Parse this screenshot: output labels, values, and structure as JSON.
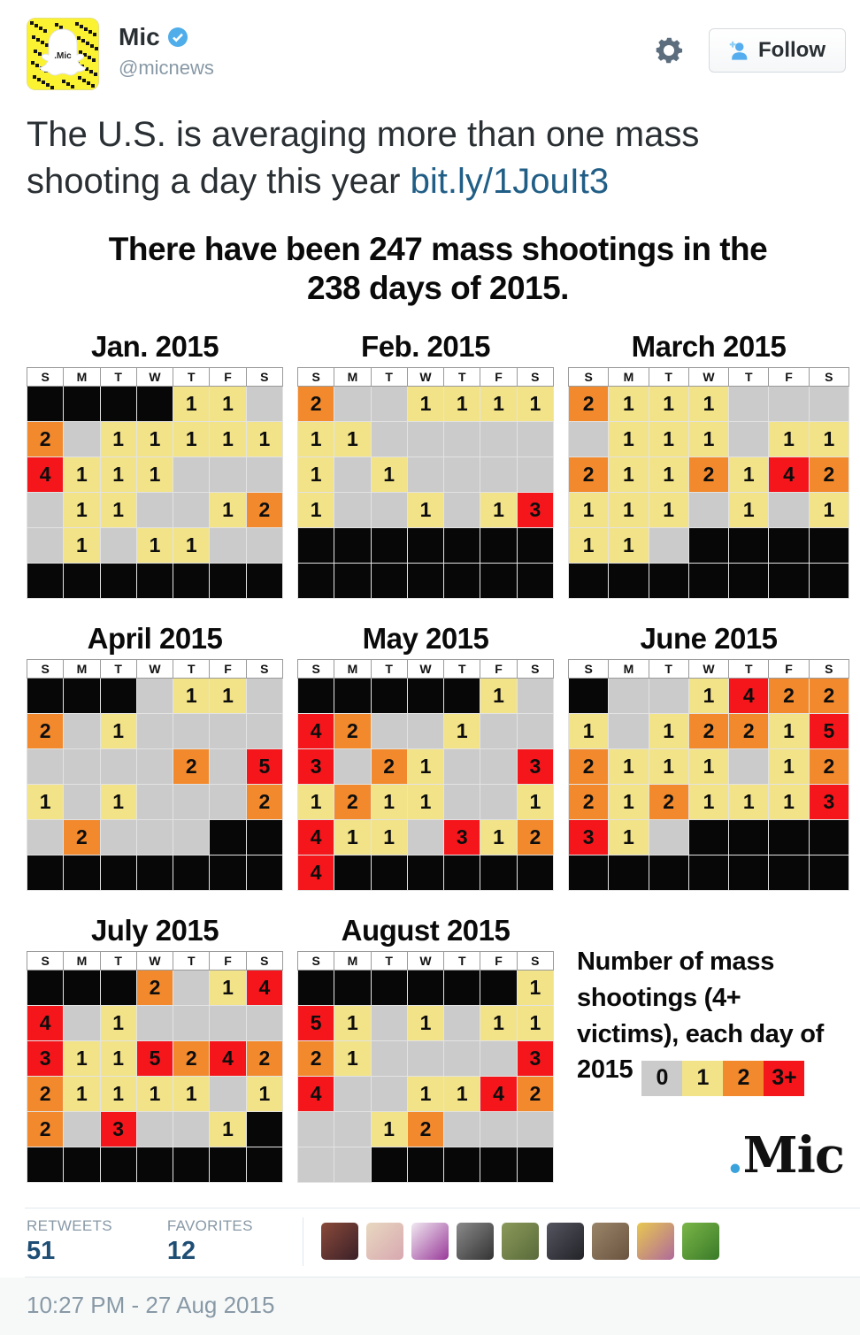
{
  "header": {
    "name": "Mic",
    "handle": "@micnews",
    "follow_label": "Follow"
  },
  "tweet": {
    "text": "The U.S. is averaging more than one mass shooting a day this year ",
    "link_text": "bit.ly/1JouIt3"
  },
  "infographic": {
    "title": "There have been 247 mass shootings in the 238 days of 2015.",
    "day_headers": [
      "S",
      "M",
      "T",
      "W",
      "T",
      "F",
      "S"
    ],
    "months": [
      {
        "name": "Jan. 2015",
        "rows": [
          [
            "k",
            "k",
            "k",
            "k",
            "y1",
            "y1",
            "g"
          ],
          [
            "o2",
            "g",
            "y1",
            "y1",
            "y1",
            "y1",
            "y1"
          ],
          [
            "r4",
            "y1",
            "y1",
            "y1",
            "g",
            "g",
            "g"
          ],
          [
            "g",
            "y1",
            "y1",
            "g",
            "g",
            "y1",
            "o2"
          ],
          [
            "g",
            "y1",
            "g",
            "y1",
            "y1",
            "g",
            "g"
          ],
          [
            "k",
            "k",
            "k",
            "k",
            "k",
            "k",
            "k"
          ]
        ]
      },
      {
        "name": "Feb. 2015",
        "rows": [
          [
            "o2",
            "g",
            "g",
            "y1",
            "y1",
            "y1",
            "y1"
          ],
          [
            "y1",
            "y1",
            "g",
            "g",
            "g",
            "g",
            "g"
          ],
          [
            "y1",
            "g",
            "y1",
            "g",
            "g",
            "g",
            "g"
          ],
          [
            "y1",
            "g",
            "g",
            "y1",
            "g",
            "y1",
            "r3"
          ],
          [
            "k",
            "k",
            "k",
            "k",
            "k",
            "k",
            "k"
          ],
          [
            "k",
            "k",
            "k",
            "k",
            "k",
            "k",
            "k"
          ]
        ]
      },
      {
        "name": "March 2015",
        "rows": [
          [
            "o2",
            "y1",
            "y1",
            "y1",
            "g",
            "g",
            "g"
          ],
          [
            "g",
            "y1",
            "y1",
            "y1",
            "g",
            "y1",
            "y1"
          ],
          [
            "o2",
            "y1",
            "y1",
            "o2",
            "y1",
            "r4",
            "o2"
          ],
          [
            "y1",
            "y1",
            "y1",
            "g",
            "y1",
            "g",
            "y1"
          ],
          [
            "y1",
            "y1",
            "g",
            "k",
            "k",
            "k",
            "k"
          ],
          [
            "k",
            "k",
            "k",
            "k",
            "k",
            "k",
            "k"
          ]
        ]
      },
      {
        "name": "April 2015",
        "rows": [
          [
            "k",
            "k",
            "k",
            "g",
            "y1",
            "y1",
            "g"
          ],
          [
            "o2",
            "g",
            "y1",
            "g",
            "g",
            "g",
            "g"
          ],
          [
            "g",
            "g",
            "g",
            "g",
            "o2",
            "g",
            "r5"
          ],
          [
            "y1",
            "g",
            "y1",
            "g",
            "g",
            "g",
            "o2"
          ],
          [
            "g",
            "o2",
            "g",
            "g",
            "g",
            "k",
            "k"
          ],
          [
            "k",
            "k",
            "k",
            "k",
            "k",
            "k",
            "k"
          ]
        ]
      },
      {
        "name": "May 2015",
        "rows": [
          [
            "k",
            "k",
            "k",
            "k",
            "k",
            "y1",
            "g"
          ],
          [
            "r4",
            "o2",
            "g",
            "g",
            "y1",
            "g",
            "g"
          ],
          [
            "r3",
            "g",
            "o2",
            "y1",
            "g",
            "g",
            "r3"
          ],
          [
            "y1",
            "o2",
            "y1",
            "y1",
            "g",
            "g",
            "y1"
          ],
          [
            "r4",
            "y1",
            "y1",
            "g",
            "r3",
            "y1",
            "o2"
          ],
          [
            "r4",
            "k",
            "k",
            "k",
            "k",
            "k",
            "k"
          ]
        ]
      },
      {
        "name": "June 2015",
        "rows": [
          [
            "k",
            "g",
            "g",
            "y1",
            "r4",
            "o2",
            "o2"
          ],
          [
            "y1",
            "g",
            "y1",
            "o2",
            "o2",
            "y1",
            "r5"
          ],
          [
            "o2",
            "y1",
            "y1",
            "y1",
            "g",
            "y1",
            "o2"
          ],
          [
            "o2",
            "y1",
            "o2",
            "y1",
            "y1",
            "y1",
            "r3"
          ],
          [
            "r3",
            "y1",
            "g",
            "k",
            "k",
            "k",
            "k"
          ],
          [
            "k",
            "k",
            "k",
            "k",
            "k",
            "k",
            "k"
          ]
        ]
      },
      {
        "name": "July 2015",
        "rows": [
          [
            "k",
            "k",
            "k",
            "o2",
            "g",
            "y1",
            "r4"
          ],
          [
            "r4",
            "g",
            "y1",
            "g",
            "g",
            "g",
            "g"
          ],
          [
            "r3",
            "y1",
            "y1",
            "r5",
            "o2",
            "r4",
            "o2"
          ],
          [
            "o2",
            "y1",
            "y1",
            "y1",
            "y1",
            "g",
            "y1"
          ],
          [
            "o2",
            "g",
            "r3",
            "g",
            "g",
            "y1",
            "k"
          ],
          [
            "k",
            "k",
            "k",
            "k",
            "k",
            "k",
            "k"
          ]
        ]
      },
      {
        "name": "August 2015",
        "rows": [
          [
            "k",
            "k",
            "k",
            "k",
            "k",
            "k",
            "y1"
          ],
          [
            "r5",
            "y1",
            "g",
            "y1",
            "g",
            "y1",
            "y1"
          ],
          [
            "o2",
            "y1",
            "g",
            "g",
            "g",
            "g",
            "r3"
          ],
          [
            "r4",
            "g",
            "g",
            "y1",
            "y1",
            "r4",
            "o2"
          ],
          [
            "g",
            "g",
            "y1",
            "o2",
            "g",
            "g",
            "g"
          ],
          [
            "g",
            "g",
            "k",
            "k",
            "k",
            "k",
            "k"
          ]
        ]
      }
    ],
    "legend": {
      "text": "Number of mass shootings (4+ victims), each day of 2015",
      "items": [
        {
          "label": "0",
          "color": "#cbcbcb"
        },
        {
          "label": "1",
          "color": "#f2e388"
        },
        {
          "label": "2",
          "color": "#f28a2d"
        },
        {
          "label": "3+",
          "color": "#f5161c"
        }
      ]
    },
    "brand": {
      "dot": ".",
      "name": "Mic"
    }
  },
  "stats": {
    "retweets_label": "RETWEETS",
    "retweets_value": "51",
    "favorites_label": "FAVORITES",
    "favorites_value": "12"
  },
  "avatars": [
    {
      "colors": [
        "#8a4a3a",
        "#3a2028"
      ]
    },
    {
      "colors": [
        "#e8d8c0",
        "#d8a8b0"
      ]
    },
    {
      "colors": [
        "#f0e8f0",
        "#993a99"
      ]
    },
    {
      "colors": [
        "#8a8a8a",
        "#333333"
      ]
    },
    {
      "colors": [
        "#8a9a5a",
        "#5a6a3a"
      ]
    },
    {
      "colors": [
        "#555560",
        "#222228"
      ]
    },
    {
      "colors": [
        "#9a8468",
        "#6a5440"
      ]
    },
    {
      "colors": [
        "#e8c850",
        "#b06a9a"
      ]
    },
    {
      "colors": [
        "#7ab648",
        "#3a7a28"
      ]
    }
  ],
  "timestamp": "10:27 PM - 27 Aug 2015",
  "colors": {
    "link": "#215e86",
    "verified_badge": "#4fadea",
    "follow_icon": "#55acee",
    "gear": "#5c6e7e",
    "muted_text": "#8899a6",
    "stat_number": "#1f4e74",
    "snapcode_yellow": "#fbf231",
    "cell_zero_gray": "#cbcbcb",
    "cell_one_yellow": "#f2e388",
    "cell_two_orange": "#f28a2d",
    "cell_three_red": "#f5161c",
    "mic_logo_dot": "#3aa3dc"
  }
}
